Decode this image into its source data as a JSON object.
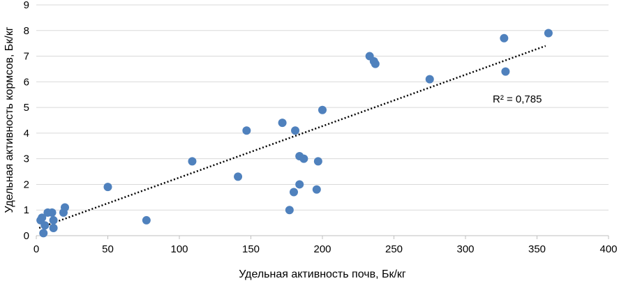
{
  "chart_data": {
    "type": "scatter",
    "title": "",
    "xlabel": "Удельная активность почв, Бк/кг",
    "ylabel": "Удельная активность кормсов, Бк/кг",
    "xlim": [
      0,
      400
    ],
    "ylim": [
      0,
      9
    ],
    "xticks": [
      "0",
      "50",
      "100",
      "150",
      "200",
      "250",
      "300",
      "350",
      "400"
    ],
    "yticks": [
      "0",
      "1",
      "2",
      "3",
      "4",
      "5",
      "6",
      "7",
      "8",
      "9"
    ],
    "grid": "horizontal",
    "legend": "none",
    "marker_color": "#4f81bd",
    "trendline": {
      "type": "linear",
      "style": "dotted",
      "color": "#000000",
      "x_range": [
        2,
        356
      ],
      "y_range": [
        0.3,
        7.4
      ],
      "r2_label": "R² = 0,785"
    },
    "points": [
      {
        "x": 3,
        "y": 0.6
      },
      {
        "x": 4,
        "y": 0.7
      },
      {
        "x": 5,
        "y": 0.1
      },
      {
        "x": 6,
        "y": 0.4
      },
      {
        "x": 8,
        "y": 0.9
      },
      {
        "x": 11,
        "y": 0.9
      },
      {
        "x": 12,
        "y": 0.6
      },
      {
        "x": 12,
        "y": 0.3
      },
      {
        "x": 19,
        "y": 0.9
      },
      {
        "x": 20,
        "y": 1.1
      },
      {
        "x": 50,
        "y": 1.9
      },
      {
        "x": 77,
        "y": 0.6
      },
      {
        "x": 109,
        "y": 2.9
      },
      {
        "x": 141,
        "y": 2.3
      },
      {
        "x": 147,
        "y": 4.1
      },
      {
        "x": 172,
        "y": 4.4
      },
      {
        "x": 177,
        "y": 1.0
      },
      {
        "x": 180,
        "y": 1.7
      },
      {
        "x": 181,
        "y": 4.1
      },
      {
        "x": 184,
        "y": 3.1
      },
      {
        "x": 184,
        "y": 2.0
      },
      {
        "x": 187,
        "y": 3.0
      },
      {
        "x": 196,
        "y": 1.8
      },
      {
        "x": 197,
        "y": 2.9
      },
      {
        "x": 200,
        "y": 4.9
      },
      {
        "x": 233,
        "y": 7.0
      },
      {
        "x": 236,
        "y": 6.8
      },
      {
        "x": 237,
        "y": 6.7
      },
      {
        "x": 275,
        "y": 6.1
      },
      {
        "x": 327,
        "y": 7.7
      },
      {
        "x": 328,
        "y": 6.4
      },
      {
        "x": 358,
        "y": 7.9
      }
    ]
  }
}
